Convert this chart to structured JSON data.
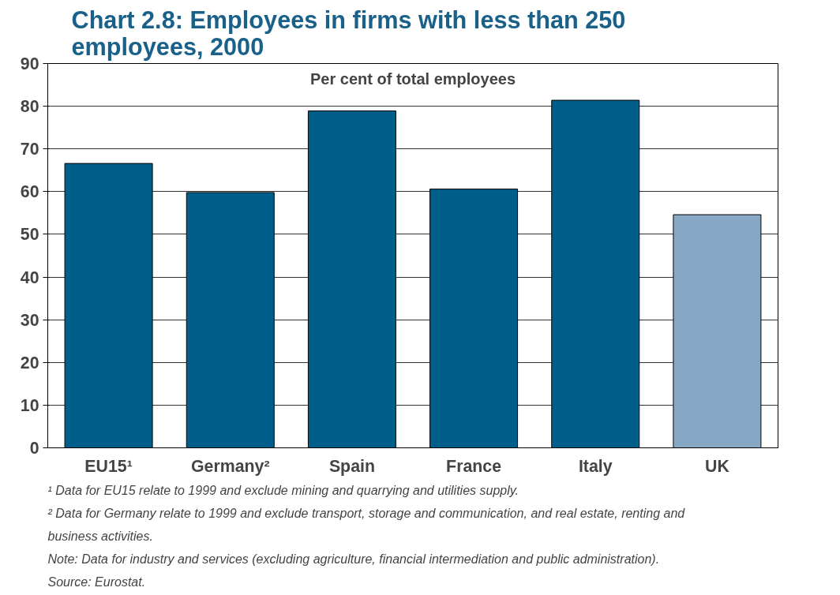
{
  "chart_data": {
    "type": "bar",
    "title": "Chart 2.8: Employees in firms with less than 250 employees, 2000",
    "ylabel": "Per cent of total employees",
    "categories": [
      "EU15¹",
      "Germany²",
      "Spain",
      "France",
      "Italy",
      "UK"
    ],
    "values": [
      66.6,
      59.8,
      78.9,
      60.6,
      81.4,
      54.6
    ],
    "colors": [
      "#005e8a",
      "#005e8a",
      "#005e8a",
      "#005e8a",
      "#005e8a",
      "#86a8c4"
    ],
    "ylim": [
      0,
      90
    ],
    "yticks": [
      0,
      10,
      20,
      30,
      40,
      50,
      60,
      70,
      80,
      90
    ],
    "grid": "y",
    "annotations": [
      "¹ Data for EU15 relate to 1999 and exclude mining and quarrying and utilities supply.",
      "² Data for Germany relate to 1999 and exclude transport, storage and communication, and real estate, renting and business activities.",
      "Note: Data for industry and services (excluding agriculture, financial intermediation and public administration).",
      "Source: Eurostat."
    ]
  }
}
